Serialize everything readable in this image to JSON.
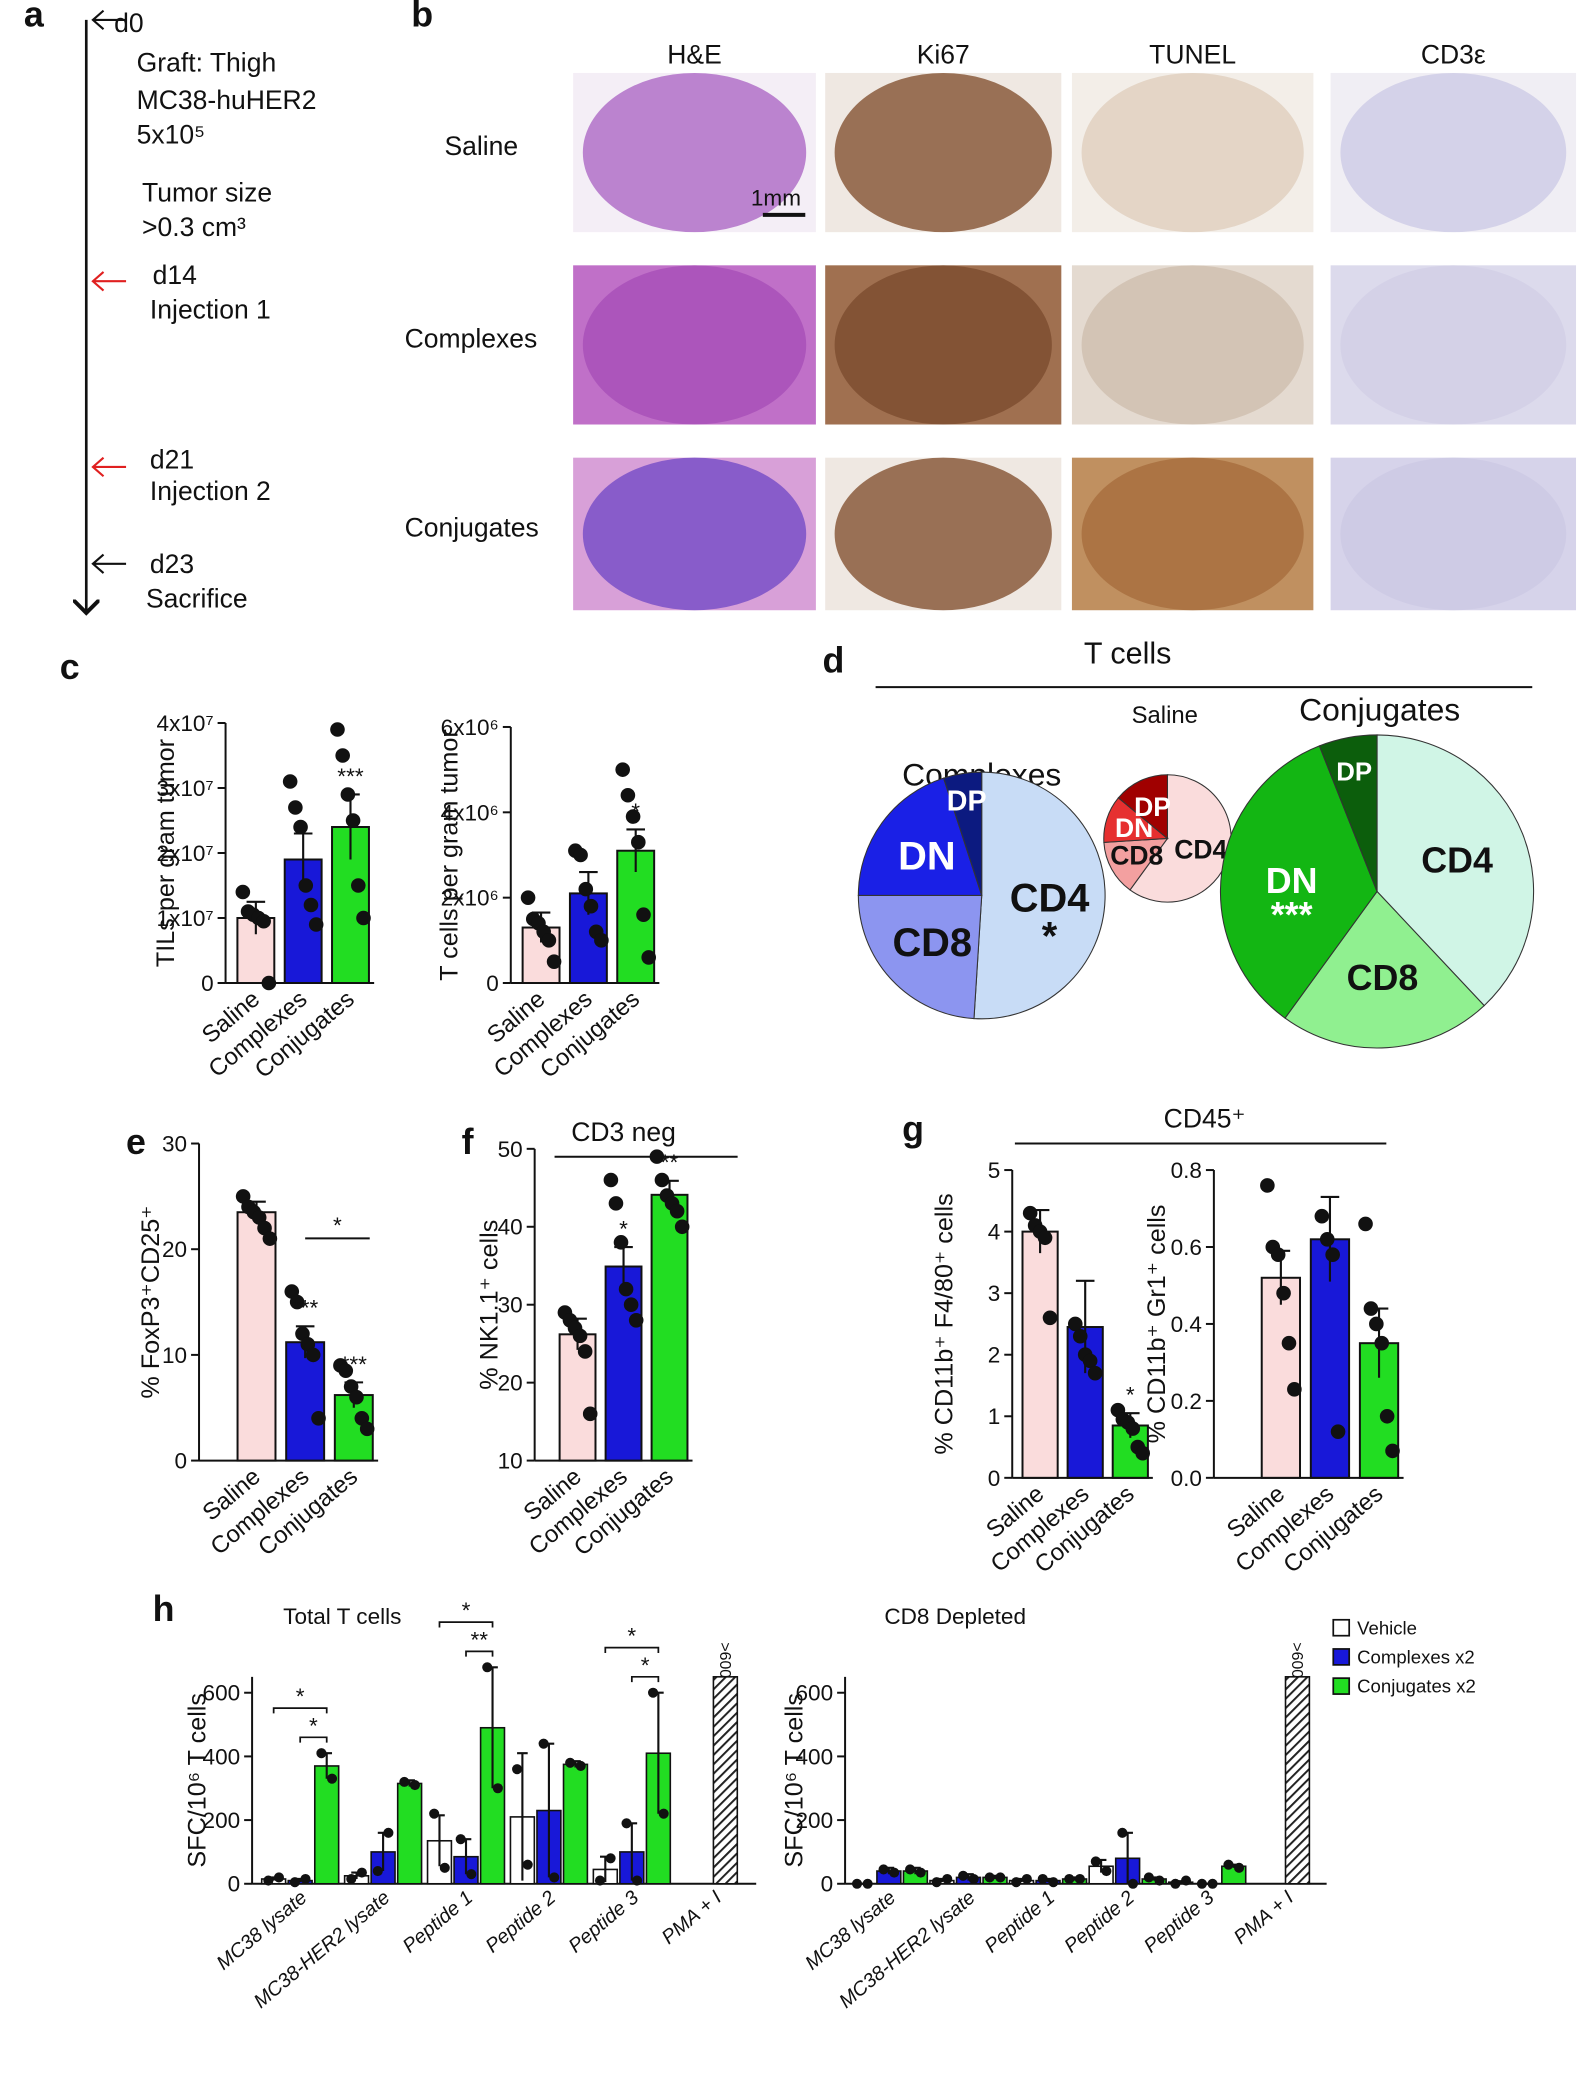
{
  "panel_labels": [
    "a",
    "b",
    "c",
    "d",
    "e",
    "f",
    "g",
    "h"
  ],
  "timeline": {
    "events": [
      "d0",
      "Graft: Thigh",
      "MC38-huHER2",
      "5x10⁵",
      "Tumor size",
      ">0.3 cm³",
      "d14",
      "Injection 1",
      "d21",
      "Injection 2",
      "d23",
      "Sacrifice"
    ]
  },
  "histology": {
    "columns": [
      "H&E",
      "Ki67",
      "TUNEL",
      "CD3ε"
    ],
    "rows": [
      "Saline",
      "Complexes",
      "Conjugates"
    ],
    "scale_bar": "1mm"
  },
  "headers": {
    "d": "T cells",
    "f": "CD3 neg",
    "g": "CD45⁺"
  },
  "chart_data": [
    {
      "type": "bar",
      "ylabel": "TILs per gram tumor",
      "categories": [
        "Saline",
        "Complexes",
        "Conjugates"
      ],
      "colors": [
        "#fadcdc",
        "#1818d8",
        "#22dd22"
      ],
      "values": [
        10000000,
        19000000,
        24000000
      ],
      "errors": [
        2500000,
        4000000,
        5000000
      ],
      "points": [
        [
          14000000,
          11000000,
          10500000,
          10000000,
          9500000,
          0
        ],
        [
          31000000,
          27000000,
          24000000,
          15000000,
          12000000,
          9000000
        ],
        [
          39000000,
          35000000,
          29000000,
          25000000,
          15000000,
          10000000
        ]
      ],
      "significance": [
        null,
        null,
        "***"
      ],
      "ylim": [
        0,
        40000000
      ],
      "yticks": [
        0,
        {
          "value": 10000000,
          "label": "1x10⁷"
        },
        {
          "value": 20000000,
          "label": "2x10⁷"
        },
        {
          "value": 30000000,
          "label": "3x10⁷"
        },
        {
          "value": 40000000,
          "label": "4x10⁷"
        }
      ]
    },
    {
      "type": "bar",
      "ylabel": "T cells per gram tumor",
      "categories": [
        "Saline",
        "Complexes",
        "Conjugates"
      ],
      "colors": [
        "#fadcdc",
        "#1818d8",
        "#22dd22"
      ],
      "values": [
        1300000,
        2100000,
        3100000
      ],
      "errors": [
        350000,
        500000,
        500000
      ],
      "points": [
        [
          2000000,
          1500000,
          1400000,
          1200000,
          1000000,
          500000
        ],
        [
          3100000,
          3000000,
          2200000,
          1800000,
          1200000,
          1000000
        ],
        [
          5000000,
          4400000,
          3900000,
          3300000,
          1600000,
          600000
        ]
      ],
      "significance": [
        null,
        null,
        "*"
      ],
      "ylim": [
        0,
        6000000
      ],
      "yticks": [
        0,
        {
          "value": 2000000,
          "label": "2x10⁶"
        },
        {
          "value": 4000000,
          "label": "4x10⁶"
        },
        {
          "value": 6000000,
          "label": "6x10⁶"
        }
      ]
    },
    {
      "type": "pie",
      "title": "Complexes",
      "categories": [
        "CD4",
        "CD8",
        "DN",
        "DP"
      ],
      "values": [
        51,
        24,
        20,
        5
      ],
      "colors": [
        "#c8dcf6",
        "#8c95f0",
        "#1a20e6",
        "#0c1a80"
      ],
      "significance": [
        "*",
        null,
        null,
        null
      ]
    },
    {
      "type": "pie",
      "title": "Saline",
      "categories": [
        "CD4",
        "CD8",
        "DN",
        "DP"
      ],
      "values": [
        60,
        14,
        12,
        14
      ],
      "colors": [
        "#fadcdc",
        "#f3a0a0",
        "#e63030",
        "#a00000"
      ],
      "significance": [
        null,
        null,
        null,
        null
      ]
    },
    {
      "type": "pie",
      "title": "Conjugates",
      "categories": [
        "CD4",
        "CD8",
        "DN",
        "DP"
      ],
      "values": [
        38,
        22,
        34,
        6
      ],
      "colors": [
        "#d0f5e6",
        "#90f090",
        "#13b613",
        "#0c5e0c"
      ],
      "significance": [
        null,
        null,
        "***",
        null
      ]
    },
    {
      "type": "bar",
      "ylabel": "% FoxP3⁺CD25⁺",
      "categories": [
        "Saline",
        "Complexes",
        "Conjugates"
      ],
      "colors": [
        "#fadcdc",
        "#1818d8",
        "#22dd22"
      ],
      "values": [
        23.5,
        11.2,
        6.2
      ],
      "errors": [
        1,
        1.5,
        1.2
      ],
      "points": [
        [
          25,
          24,
          23.5,
          23,
          22,
          21
        ],
        [
          16,
          15,
          12,
          11,
          10,
          4
        ],
        [
          9,
          8.5,
          7,
          6,
          4,
          3
        ]
      ],
      "significance": [
        null,
        "***",
        "***"
      ],
      "brackets": [
        {
          "from": 1,
          "to": 2,
          "label": "*"
        }
      ],
      "ylim": [
        0,
        30
      ],
      "yticks": [
        0,
        10,
        20,
        30
      ]
    },
    {
      "type": "bar",
      "ylabel": "% NK1.1⁺ cells",
      "categories": [
        "Saline",
        "Complexes",
        "Conjugates"
      ],
      "colors": [
        "#fadcdc",
        "#1818d8",
        "#22dd22"
      ],
      "values": [
        26.2,
        34.9,
        44.1
      ],
      "errors": [
        2,
        2.5,
        1.8
      ],
      "points": [
        [
          29,
          28,
          27,
          26,
          24,
          16
        ],
        [
          46,
          43,
          38,
          32,
          30,
          28
        ],
        [
          49,
          46,
          44,
          43,
          42,
          40
        ]
      ],
      "significance": [
        null,
        "*",
        "**"
      ],
      "ylim": [
        10,
        50
      ],
      "yticks": [
        10,
        20,
        30,
        40,
        50
      ]
    },
    {
      "type": "bar",
      "ylabel": "% CD11b⁺ F4/80⁺ cells",
      "categories": [
        "Saline",
        "Complexes",
        "Conjugates"
      ],
      "colors": [
        "#fadcdc",
        "#1818d8",
        "#22dd22"
      ],
      "values": [
        4.0,
        2.45,
        0.85
      ],
      "errors": [
        0.35,
        0.75,
        0.2
      ],
      "points": [
        [
          4.3,
          4.1,
          4.0,
          3.9,
          2.6
        ],
        [
          2.5,
          2.3,
          2.0,
          1.9,
          1.7
        ],
        [
          1.1,
          0.95,
          0.9,
          0.8,
          0.5,
          0.4
        ]
      ],
      "significance": [
        null,
        null,
        "*"
      ],
      "ylim": [
        0,
        5
      ],
      "yticks": [
        0,
        1,
        2,
        3,
        4,
        5
      ]
    },
    {
      "type": "bar",
      "ylabel": "% CD11b⁺ Gr1⁺ cells",
      "categories": [
        "Saline",
        "Complexes",
        "Conjugates"
      ],
      "colors": [
        "#fadcdc",
        "#1818d8",
        "#22dd22"
      ],
      "values": [
        0.52,
        0.62,
        0.35
      ],
      "errors": [
        0.07,
        0.11,
        0.09
      ],
      "points": [
        [
          0.76,
          0.6,
          0.58,
          0.48,
          0.35,
          0.23
        ],
        [
          0.68,
          0.62,
          0.58,
          0.12
        ],
        [
          0.66,
          0.44,
          0.4,
          0.35,
          0.16,
          0.07
        ]
      ],
      "significance": [
        null,
        null,
        null
      ],
      "ylim": [
        0,
        0.8
      ],
      "yticks": [
        {
          "value": 0,
          "label": "0.0"
        },
        0.2,
        0.4,
        0.6,
        0.8
      ]
    },
    {
      "type": "grouped_bar",
      "title": "Total T cells",
      "ylabel": "SFC/10⁶ T cells",
      "categories": [
        "MC38 lysate",
        "MC38-HER2 lysate",
        "Peptide 1",
        "Peptide 2",
        "Peptide 3",
        "PMA + I"
      ],
      "series": [
        {
          "name": "Vehicle",
          "color": "#ffffff",
          "values": [
            15,
            25,
            135,
            210,
            45,
            null
          ],
          "errors": [
            5,
            10,
            80,
            200,
            40,
            null
          ],
          "points": [
            [
              10,
              20
            ],
            [
              15,
              35
            ],
            [
              220,
              50
            ],
            [
              360,
              60
            ],
            [
              10,
              80
            ],
            null
          ]
        },
        {
          "name": "Complexes x2",
          "color": "#1818d8",
          "values": [
            10,
            100,
            85,
            230,
            100,
            null
          ],
          "errors": [
            5,
            60,
            55,
            210,
            90,
            null
          ],
          "points": [
            [
              5,
              15
            ],
            [
              40,
              160
            ],
            [
              140,
              30
            ],
            [
              440,
              20
            ],
            [
              190,
              10
            ],
            null
          ]
        },
        {
          "name": "Conjugates x2",
          "color": "#22dd22",
          "values": [
            370,
            315,
            490,
            375,
            410,
            null
          ],
          "errors": [
            40,
            10,
            190,
            10,
            190,
            null
          ],
          "points": [
            [
              410,
              330
            ],
            [
              320,
              310
            ],
            [
              680,
              300
            ],
            [
              380,
              370
            ],
            [
              600,
              220
            ],
            null
          ]
        }
      ],
      "off_scale_label": ">600",
      "brackets": [
        {
          "group": 0,
          "from": 1,
          "to": 2,
          "label": "*"
        },
        {
          "group": 0,
          "from": 0,
          "to": 2,
          "label": "*"
        },
        {
          "group": 2,
          "from": 1,
          "to": 2,
          "label": "**"
        },
        {
          "group": 2,
          "from": 0,
          "to": 2,
          "label": "*"
        },
        {
          "group": 4,
          "from": 1,
          "to": 2,
          "label": "*"
        },
        {
          "group": 4,
          "from": 0,
          "to": 2,
          "label": "*"
        }
      ],
      "ylim": [
        0,
        650
      ],
      "yticks": [
        0,
        200,
        400,
        600
      ]
    },
    {
      "type": "grouped_bar",
      "title": "CD8 Depleted",
      "ylabel": "SFC/10⁶ T cells",
      "categories": [
        "MC38 lysate",
        "MC38-HER2 lysate",
        "Peptide 1",
        "Peptide 2",
        "Peptide 3",
        "PMA + I"
      ],
      "series": [
        {
          "name": "Vehicle",
          "color": "#ffffff",
          "values": [
            0,
            10,
            10,
            55,
            5,
            null
          ],
          "errors": [
            0,
            5,
            5,
            20,
            3,
            null
          ],
          "points": [
            [
              0,
              0
            ],
            [
              5,
              15
            ],
            [
              5,
              15
            ],
            [
              70,
              40
            ],
            [
              0,
              10
            ],
            null
          ]
        },
        {
          "name": "Complexes x2",
          "color": "#1818d8",
          "values": [
            40,
            20,
            10,
            80,
            0,
            null
          ],
          "errors": [
            10,
            10,
            5,
            80,
            0,
            null
          ],
          "points": [
            [
              45,
              35
            ],
            [
              25,
              15
            ],
            [
              15,
              5
            ],
            [
              160,
              0
            ],
            [
              0,
              0
            ],
            null
          ]
        },
        {
          "name": "Conjugates x2",
          "color": "#22dd22",
          "values": [
            40,
            20,
            15,
            15,
            55,
            null
          ],
          "errors": [
            10,
            5,
            5,
            5,
            5,
            null
          ],
          "points": [
            [
              45,
              35
            ],
            [
              20,
              20
            ],
            [
              15,
              15
            ],
            [
              20,
              10
            ],
            [
              60,
              50
            ],
            null
          ]
        }
      ],
      "off_scale_label": ">600",
      "legend": "outside right",
      "ylim": [
        0,
        650
      ],
      "yticks": [
        0,
        200,
        400,
        600
      ]
    }
  ]
}
